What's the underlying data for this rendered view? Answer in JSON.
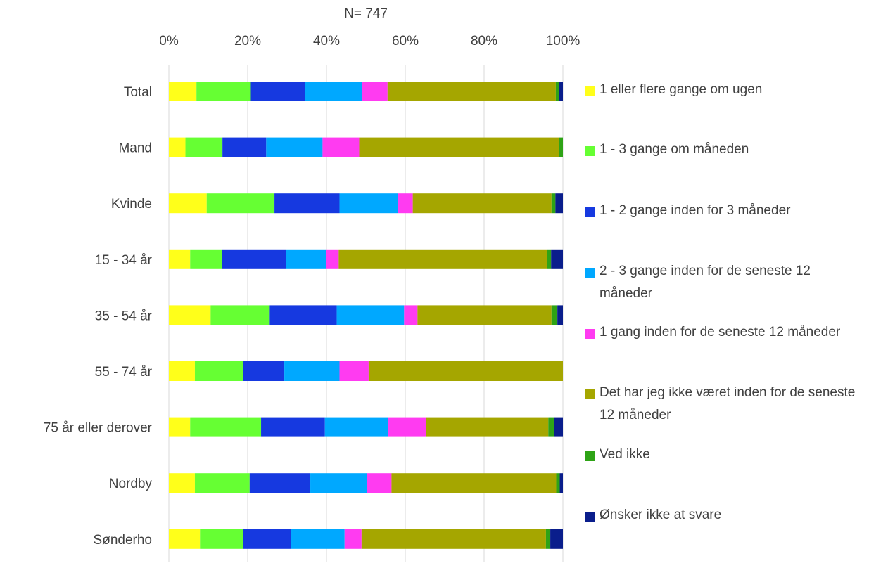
{
  "chart_data": {
    "type": "bar",
    "orientation": "horizontal",
    "stacked": "percent",
    "subtitle": "N= 747",
    "x_ticks": [
      "0%",
      "20%",
      "40%",
      "60%",
      "80%",
      "100%"
    ],
    "xlim": [
      0,
      100
    ],
    "grid": "vertical",
    "legend_position": "right",
    "categories": [
      "Total",
      "Mand",
      "Kvinde",
      "15 - 34 år",
      "35 - 54 år",
      "55 - 74 år",
      "75 år eller derover",
      "Nordby",
      "Sønderho"
    ],
    "series": [
      {
        "name": "1 eller flere gange om ugen",
        "color": "#FFFF1A",
        "values": [
          7.0,
          4.2,
          9.6,
          5.4,
          10.6,
          6.6,
          5.4,
          6.6,
          7.9
        ]
      },
      {
        "name": "1 - 3 gange om måneden",
        "color": "#66FF33",
        "values": [
          13.8,
          9.4,
          17.2,
          8.1,
          15.0,
          12.3,
          18.0,
          13.9,
          11.0
        ]
      },
      {
        "name": "1 - 2 gange inden for 3 måneder",
        "color": "#1639E0",
        "values": [
          13.8,
          11.1,
          16.5,
          16.3,
          17.0,
          10.4,
          16.2,
          15.4,
          12.0
        ]
      },
      {
        "name": "2 - 3 gange inden for de seneste 12 måneder",
        "color": "#00A8FF",
        "values": [
          14.5,
          14.3,
          14.8,
          10.2,
          17.1,
          14.0,
          16.0,
          14.3,
          13.7
        ]
      },
      {
        "name": "1 gang inden for de seneste 12 måneder",
        "color": "#FF3BF1",
        "values": [
          6.4,
          9.3,
          3.8,
          3.1,
          3.4,
          7.4,
          9.6,
          6.3,
          4.3
        ]
      },
      {
        "name": "Det har jeg ikke været inden for de seneste 12 måneder",
        "color": "#A5A600",
        "values": [
          42.7,
          50.8,
          35.2,
          52.9,
          34.0,
          49.3,
          31.1,
          41.8,
          46.8
        ]
      },
      {
        "name": "Ved ikke",
        "color": "#2EA316",
        "values": [
          0.9,
          0.9,
          1.0,
          1.0,
          1.5,
          0.0,
          1.4,
          0.9,
          1.1
        ]
      },
      {
        "name": "Ønsker ikke at svare",
        "color": "#0A1E8C",
        "values": [
          0.9,
          0.0,
          1.9,
          3.0,
          1.4,
          0.0,
          2.3,
          0.8,
          3.2
        ]
      }
    ]
  }
}
